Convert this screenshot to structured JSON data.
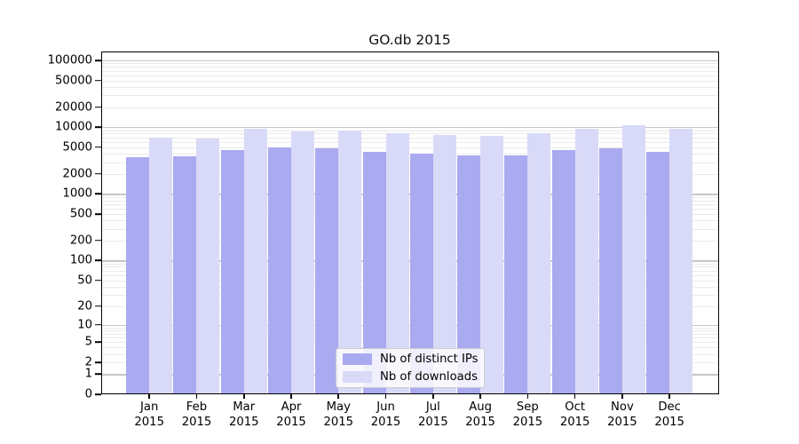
{
  "chart_data": {
    "type": "bar",
    "title": "GO.db 2015",
    "categories": [
      "Jan 2015",
      "Feb 2015",
      "Mar 2015",
      "Apr 2015",
      "May 2015",
      "Jun 2015",
      "Jul 2015",
      "Aug 2015",
      "Sep 2015",
      "Oct 2015",
      "Nov 2015",
      "Dec 2015"
    ],
    "series": [
      {
        "name": "Nb of distinct IPs",
        "color": "#aaaaf0",
        "values": [
          3500,
          3700,
          4600,
          4900,
          4800,
          4300,
          4000,
          3800,
          3800,
          4600,
          4800,
          4300
        ]
      },
      {
        "name": "Nb of downloads",
        "color": "#d9d9f8",
        "values": [
          6900,
          6700,
          9400,
          8700,
          8900,
          8000,
          7700,
          7300,
          8200,
          9600,
          10700,
          9400
        ]
      }
    ],
    "xlabel": "",
    "ylabel": "",
    "y_axis": {
      "scale": "log1p",
      "ticks": [
        100000,
        50000,
        20000,
        10000,
        5000,
        2000,
        1000,
        500,
        200,
        100,
        50,
        20,
        10,
        5,
        2,
        1,
        0
      ],
      "range_top": 100000,
      "range_bottom": 0
    },
    "grid": "horizontal",
    "legend_position": "bottom-center"
  }
}
